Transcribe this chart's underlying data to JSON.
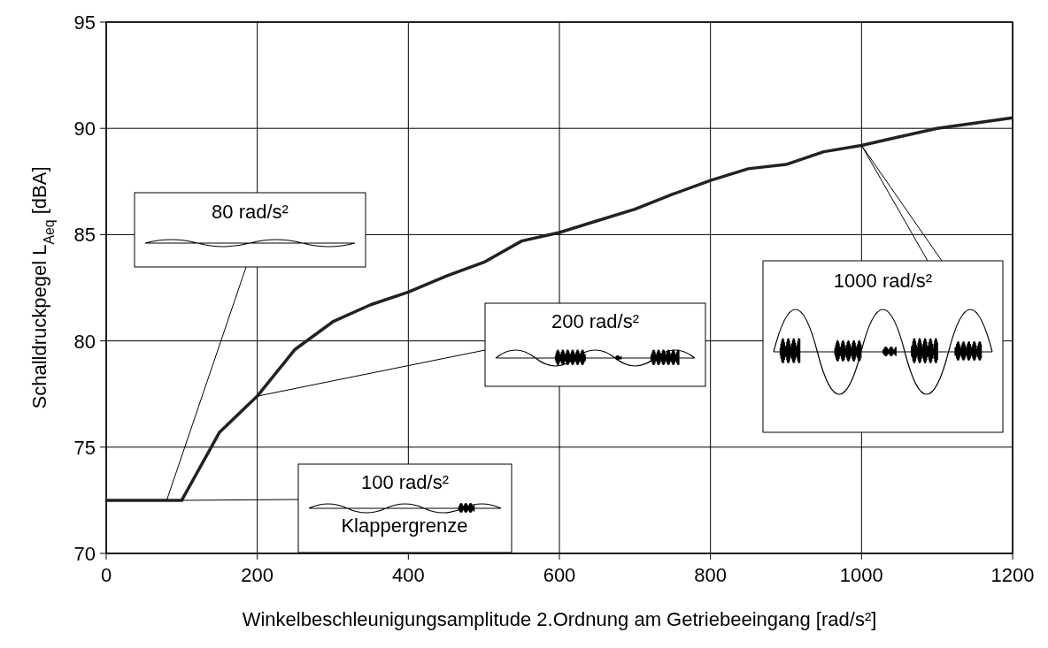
{
  "chart_data": {
    "type": "line",
    "xlabel": "Winkelbeschleunigungsamplitude 2.Ordnung am Getriebeeingang [rad/s²]",
    "ylabel": "Schalldruckpegel L$_{Aeq}$ [dBA]",
    "x": [
      0,
      100,
      150,
      200,
      250,
      300,
      350,
      400,
      450,
      500,
      550,
      600,
      650,
      700,
      750,
      800,
      850,
      900,
      950,
      1000,
      1050,
      1100,
      1150,
      1200
    ],
    "series": [
      {
        "color": "#222222",
        "values": [
          72.5,
          72.5,
          75.7,
          77.4,
          79.6,
          80.9,
          81.7,
          82.3,
          83.05,
          83.7,
          84.7,
          85.1,
          85.65,
          86.2,
          86.9,
          87.55,
          88.1,
          88.3,
          88.9,
          89.2,
          89.6,
          90.0,
          90.25,
          90.5
        ]
      }
    ],
    "xlim": [
      0,
      1200
    ],
    "xticks": [
      0,
      200,
      400,
      600,
      800,
      1000,
      1200
    ],
    "ylim": [
      70,
      95
    ],
    "yticks": [
      70,
      75,
      80,
      85,
      90,
      95
    ],
    "grid": true,
    "marker": "none",
    "line_style": "solid",
    "annotations": [
      "80 rad/s²",
      "100 rad/s²",
      "Klappergrenze",
      "200 rad/s²",
      {
        "text": "1000 rad/s²",
        "x": 1000,
        "y": 89.2
      }
    ]
  }
}
